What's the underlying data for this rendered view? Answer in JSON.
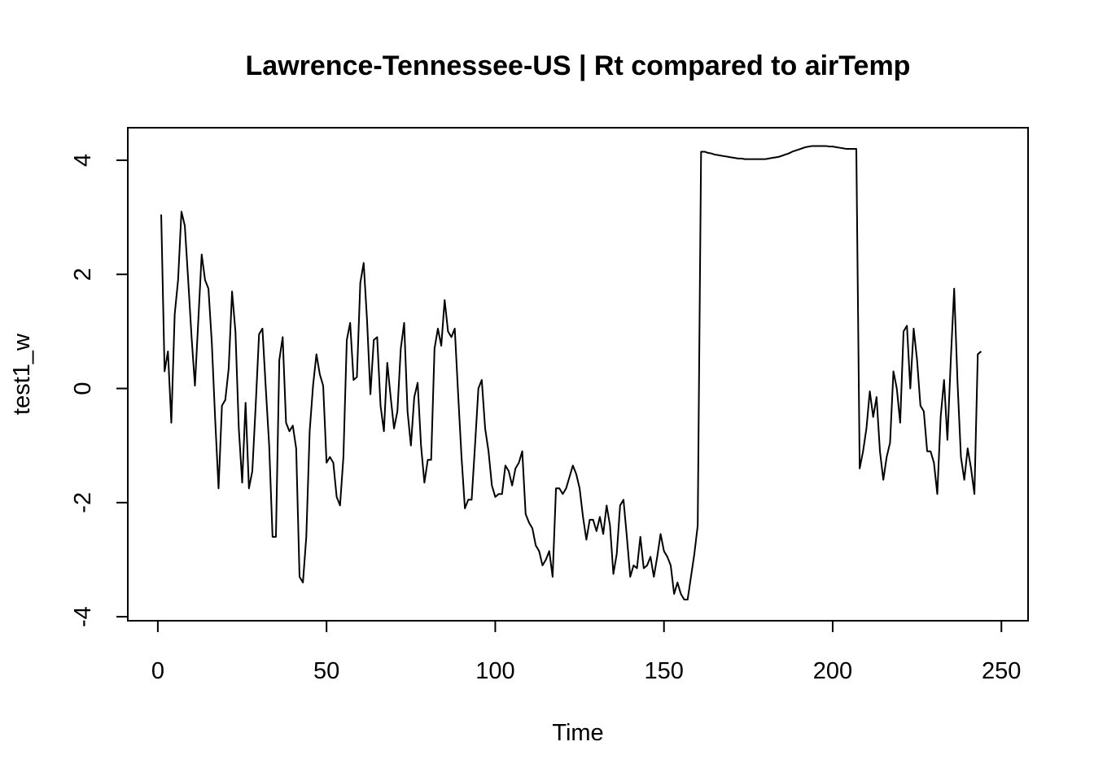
{
  "chart_data": {
    "type": "line",
    "title": "Lawrence-Tennessee-US | Rt compared to airTemp",
    "xlabel": "Time",
    "ylabel": "test1_w",
    "xlim": [
      -8.9,
      257.9
    ],
    "ylim": [
      -4.07,
      4.57
    ],
    "x_ticks": [
      0,
      50,
      100,
      150,
      200,
      250
    ],
    "x_tick_labels": [
      "0",
      "50",
      "100",
      "150",
      "200",
      "250"
    ],
    "y_ticks": [
      -4,
      -2,
      0,
      2,
      4
    ],
    "y_tick_labels": [
      "-4",
      "-2",
      "0",
      "2",
      "4"
    ],
    "grid": false,
    "legend": "none",
    "line_color": "#000000",
    "series": [
      {
        "x_start": 1,
        "x_step": 1,
        "values": [
          3.05,
          0.3,
          0.65,
          -0.6,
          1.3,
          1.9,
          3.1,
          2.85,
          1.9,
          0.9,
          0.05,
          1.2,
          2.35,
          1.9,
          1.75,
          0.8,
          -0.55,
          -1.75,
          -0.3,
          -0.2,
          0.35,
          1.7,
          1.0,
          -0.7,
          -1.65,
          -0.25,
          -1.75,
          -1.45,
          -0.3,
          0.95,
          1.05,
          0.0,
          -1.0,
          -2.6,
          -2.6,
          0.5,
          0.9,
          -0.6,
          -0.75,
          -0.65,
          -1.05,
          -3.3,
          -3.4,
          -2.6,
          -0.75,
          0.05,
          0.6,
          0.25,
          0.05,
          -1.3,
          -1.2,
          -1.3,
          -1.9,
          -2.05,
          -1.2,
          0.85,
          1.15,
          0.15,
          0.2,
          1.85,
          2.2,
          1.2,
          -0.1,
          0.85,
          0.9,
          -0.3,
          -0.75,
          0.45,
          -0.15,
          -0.7,
          -0.4,
          0.7,
          1.15,
          -0.4,
          -1.0,
          -0.15,
          0.1,
          -1.0,
          -1.65,
          -1.25,
          -1.25,
          0.7,
          1.05,
          0.75,
          1.55,
          1.0,
          0.9,
          1.05,
          -0.1,
          -1.2,
          -2.1,
          -1.95,
          -1.95,
          -1.0,
          0.0,
          0.15,
          -0.7,
          -1.1,
          -1.7,
          -1.9,
          -1.85,
          -1.85,
          -1.35,
          -1.45,
          -1.7,
          -1.4,
          -1.3,
          -1.1,
          -2.2,
          -2.35,
          -2.45,
          -2.75,
          -2.85,
          -3.1,
          -3.0,
          -2.85,
          -3.3,
          -1.75,
          -1.75,
          -1.85,
          -1.75,
          -1.55,
          -1.35,
          -1.5,
          -1.75,
          -2.25,
          -2.65,
          -2.3,
          -2.3,
          -2.5,
          -2.25,
          -2.55,
          -2.05,
          -2.4,
          -3.25,
          -2.9,
          -2.05,
          -1.95,
          -2.6,
          -3.3,
          -3.1,
          -3.15,
          -2.6,
          -3.15,
          -3.1,
          -2.95,
          -3.3,
          -2.95,
          -2.55,
          -2.85,
          -2.95,
          -3.1,
          -3.6,
          -3.4,
          -3.6,
          -3.7,
          -3.7,
          -3.3,
          -2.9,
          -2.4,
          4.15,
          4.15,
          4.13,
          4.12,
          4.1,
          4.09,
          4.08,
          4.07,
          4.06,
          4.05,
          4.04,
          4.03,
          4.03,
          4.02,
          4.02,
          4.02,
          4.02,
          4.02,
          4.02,
          4.02,
          4.03,
          4.04,
          4.05,
          4.06,
          4.08,
          4.1,
          4.12,
          4.15,
          4.17,
          4.19,
          4.21,
          4.23,
          4.24,
          4.25,
          4.25,
          4.25,
          4.25,
          4.25,
          4.24,
          4.24,
          4.23,
          4.22,
          4.21,
          4.2,
          4.2,
          4.2,
          4.2,
          -1.4,
          -1.1,
          -0.7,
          -0.05,
          -0.5,
          -0.15,
          -1.1,
          -1.6,
          -1.2,
          -0.95,
          0.3,
          0.0,
          -0.6,
          1.0,
          1.1,
          0.0,
          1.05,
          0.5,
          -0.3,
          -0.4,
          -1.1,
          -1.1,
          -1.3,
          -1.85,
          -0.5,
          0.15,
          -0.9,
          0.5,
          1.75,
          0.1,
          -1.2,
          -1.6,
          -1.05,
          -1.4,
          -1.85,
          0.6,
          0.65
        ]
      }
    ]
  }
}
